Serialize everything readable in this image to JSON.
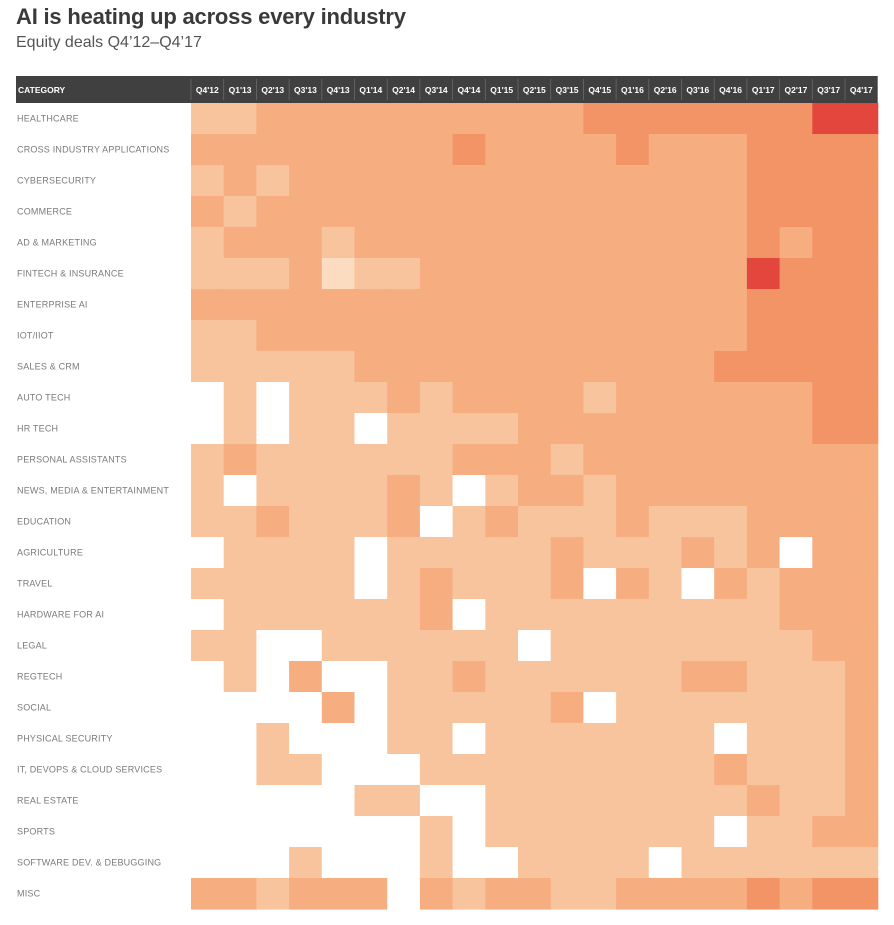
{
  "title": "AI is heating up across every industry",
  "subtitle": "Equity deals Q4’12–Q4’17",
  "colors": {
    "header_bg": "#404040",
    "header_text": "#ffffff",
    "scale": [
      "#ffffff",
      "#fbdcc0",
      "#f8c49d",
      "#f6ad80",
      "#f39466",
      "#e2463d"
    ]
  },
  "chart_data": {
    "type": "heatmap",
    "value_description": "intensity level 0 (none) to 5 (highest)",
    "header_label": "CATEGORY",
    "columns": [
      "Q4'12",
      "Q1'13",
      "Q2'13",
      "Q3'13",
      "Q4'13",
      "Q1'14",
      "Q2'14",
      "Q3'14",
      "Q4'14",
      "Q1'15",
      "Q2'15",
      "Q3'15",
      "Q4'15",
      "Q1'16",
      "Q2'16",
      "Q3'16",
      "Q4'16",
      "Q1'17",
      "Q2'17",
      "Q3'17",
      "Q4'17"
    ],
    "rows": [
      {
        "label": "HEALTHCARE",
        "values": [
          2,
          2,
          3,
          3,
          3,
          3,
          3,
          3,
          3,
          3,
          3,
          3,
          4,
          4,
          4,
          4,
          4,
          4,
          4,
          5,
          5
        ]
      },
      {
        "label": "CROSS INDUSTRY APPLICATIONS",
        "values": [
          3,
          3,
          3,
          3,
          3,
          3,
          3,
          3,
          4,
          3,
          3,
          3,
          3,
          4,
          3,
          3,
          3,
          4,
          4,
          4,
          4
        ]
      },
      {
        "label": "CYBERSECURITY",
        "values": [
          2,
          3,
          2,
          3,
          3,
          3,
          3,
          3,
          3,
          3,
          3,
          3,
          3,
          3,
          3,
          3,
          3,
          4,
          4,
          4,
          4
        ]
      },
      {
        "label": "COMMERCE",
        "values": [
          3,
          2,
          3,
          3,
          3,
          3,
          3,
          3,
          3,
          3,
          3,
          3,
          3,
          3,
          3,
          3,
          3,
          4,
          4,
          4,
          4
        ]
      },
      {
        "label": "AD & MARKETING",
        "values": [
          2,
          3,
          3,
          3,
          2,
          3,
          3,
          3,
          3,
          3,
          3,
          3,
          3,
          3,
          3,
          3,
          3,
          4,
          3,
          4,
          4
        ]
      },
      {
        "label": "FINTECH & INSURANCE",
        "values": [
          2,
          2,
          2,
          3,
          1,
          2,
          2,
          3,
          3,
          3,
          3,
          3,
          3,
          3,
          3,
          3,
          3,
          5,
          4,
          4,
          4
        ]
      },
      {
        "label": "ENTERPRISE AI",
        "values": [
          3,
          3,
          3,
          3,
          3,
          3,
          3,
          3,
          3,
          3,
          3,
          3,
          3,
          3,
          3,
          3,
          3,
          4,
          4,
          4,
          4
        ]
      },
      {
        "label": "IOT/IIOT",
        "values": [
          2,
          2,
          3,
          3,
          3,
          3,
          3,
          3,
          3,
          3,
          3,
          3,
          3,
          3,
          3,
          3,
          3,
          4,
          4,
          4,
          4
        ]
      },
      {
        "label": "SALES & CRM",
        "values": [
          2,
          2,
          2,
          2,
          2,
          3,
          3,
          3,
          3,
          3,
          3,
          3,
          3,
          3,
          3,
          3,
          4,
          4,
          4,
          4,
          4
        ]
      },
      {
        "label": "AUTO TECH",
        "values": [
          0,
          2,
          0,
          2,
          2,
          2,
          3,
          2,
          3,
          3,
          3,
          3,
          2,
          3,
          3,
          3,
          3,
          3,
          3,
          4,
          4
        ]
      },
      {
        "label": "HR TECH",
        "values": [
          0,
          2,
          0,
          2,
          2,
          0,
          2,
          2,
          2,
          2,
          3,
          3,
          3,
          3,
          3,
          3,
          3,
          3,
          3,
          4,
          4
        ]
      },
      {
        "label": "PERSONAL ASSISTANTS",
        "values": [
          2,
          3,
          2,
          2,
          2,
          2,
          2,
          2,
          3,
          3,
          3,
          2,
          3,
          3,
          3,
          3,
          3,
          3,
          3,
          3,
          3
        ]
      },
      {
        "label": "NEWS, MEDIA & ENTERTAINMENT",
        "values": [
          2,
          0,
          2,
          2,
          2,
          2,
          3,
          2,
          0,
          2,
          3,
          3,
          2,
          3,
          3,
          3,
          3,
          3,
          3,
          3,
          3
        ]
      },
      {
        "label": "EDUCATION",
        "values": [
          2,
          2,
          3,
          2,
          2,
          2,
          3,
          0,
          2,
          3,
          2,
          2,
          2,
          3,
          2,
          2,
          2,
          3,
          3,
          3,
          3
        ]
      },
      {
        "label": "AGRICULTURE",
        "values": [
          0,
          2,
          2,
          2,
          2,
          0,
          2,
          2,
          2,
          2,
          2,
          3,
          2,
          2,
          2,
          3,
          2,
          3,
          0,
          3,
          3
        ]
      },
      {
        "label": "TRAVEL",
        "values": [
          2,
          2,
          2,
          2,
          2,
          0,
          2,
          3,
          2,
          2,
          2,
          3,
          0,
          3,
          2,
          0,
          3,
          2,
          3,
          3,
          3
        ]
      },
      {
        "label": "HARDWARE FOR AI",
        "values": [
          0,
          2,
          2,
          2,
          2,
          2,
          2,
          3,
          0,
          2,
          2,
          2,
          2,
          2,
          2,
          2,
          2,
          2,
          3,
          3,
          3
        ]
      },
      {
        "label": "LEGAL",
        "values": [
          2,
          2,
          0,
          0,
          2,
          2,
          2,
          2,
          2,
          2,
          0,
          2,
          2,
          2,
          2,
          2,
          2,
          2,
          2,
          3,
          3
        ]
      },
      {
        "label": "REGTECH",
        "values": [
          0,
          2,
          0,
          3,
          0,
          0,
          2,
          2,
          3,
          2,
          2,
          2,
          2,
          2,
          2,
          3,
          3,
          2,
          2,
          2,
          3
        ]
      },
      {
        "label": "SOCIAL",
        "values": [
          0,
          0,
          0,
          0,
          3,
          0,
          2,
          2,
          2,
          2,
          2,
          3,
          0,
          2,
          2,
          2,
          2,
          2,
          2,
          2,
          3
        ]
      },
      {
        "label": "PHYSICAL SECURITY",
        "values": [
          0,
          0,
          2,
          0,
          0,
          0,
          2,
          2,
          0,
          2,
          2,
          2,
          2,
          2,
          2,
          2,
          0,
          2,
          2,
          2,
          3
        ]
      },
      {
        "label": "IT, DEVOPS & CLOUD SERVICES",
        "values": [
          0,
          0,
          2,
          2,
          0,
          0,
          0,
          2,
          2,
          2,
          2,
          2,
          2,
          2,
          2,
          2,
          3,
          2,
          2,
          2,
          3
        ]
      },
      {
        "label": "REAL ESTATE",
        "values": [
          0,
          0,
          0,
          0,
          0,
          2,
          2,
          0,
          0,
          2,
          2,
          2,
          2,
          2,
          2,
          2,
          2,
          3,
          2,
          2,
          3
        ]
      },
      {
        "label": "SPORTS",
        "values": [
          0,
          0,
          0,
          0,
          0,
          0,
          0,
          2,
          0,
          2,
          2,
          2,
          2,
          2,
          2,
          2,
          0,
          2,
          2,
          3,
          3
        ]
      },
      {
        "label": "SOFTWARE DEV. & DEBUGGING",
        "values": [
          0,
          0,
          0,
          2,
          0,
          0,
          0,
          2,
          0,
          0,
          2,
          2,
          2,
          2,
          0,
          2,
          2,
          2,
          2,
          2,
          2
        ]
      },
      {
        "label": "MISC",
        "values": [
          3,
          3,
          2,
          3,
          3,
          3,
          0,
          3,
          2,
          3,
          3,
          2,
          2,
          3,
          3,
          3,
          3,
          4,
          3,
          4,
          4
        ]
      }
    ]
  }
}
